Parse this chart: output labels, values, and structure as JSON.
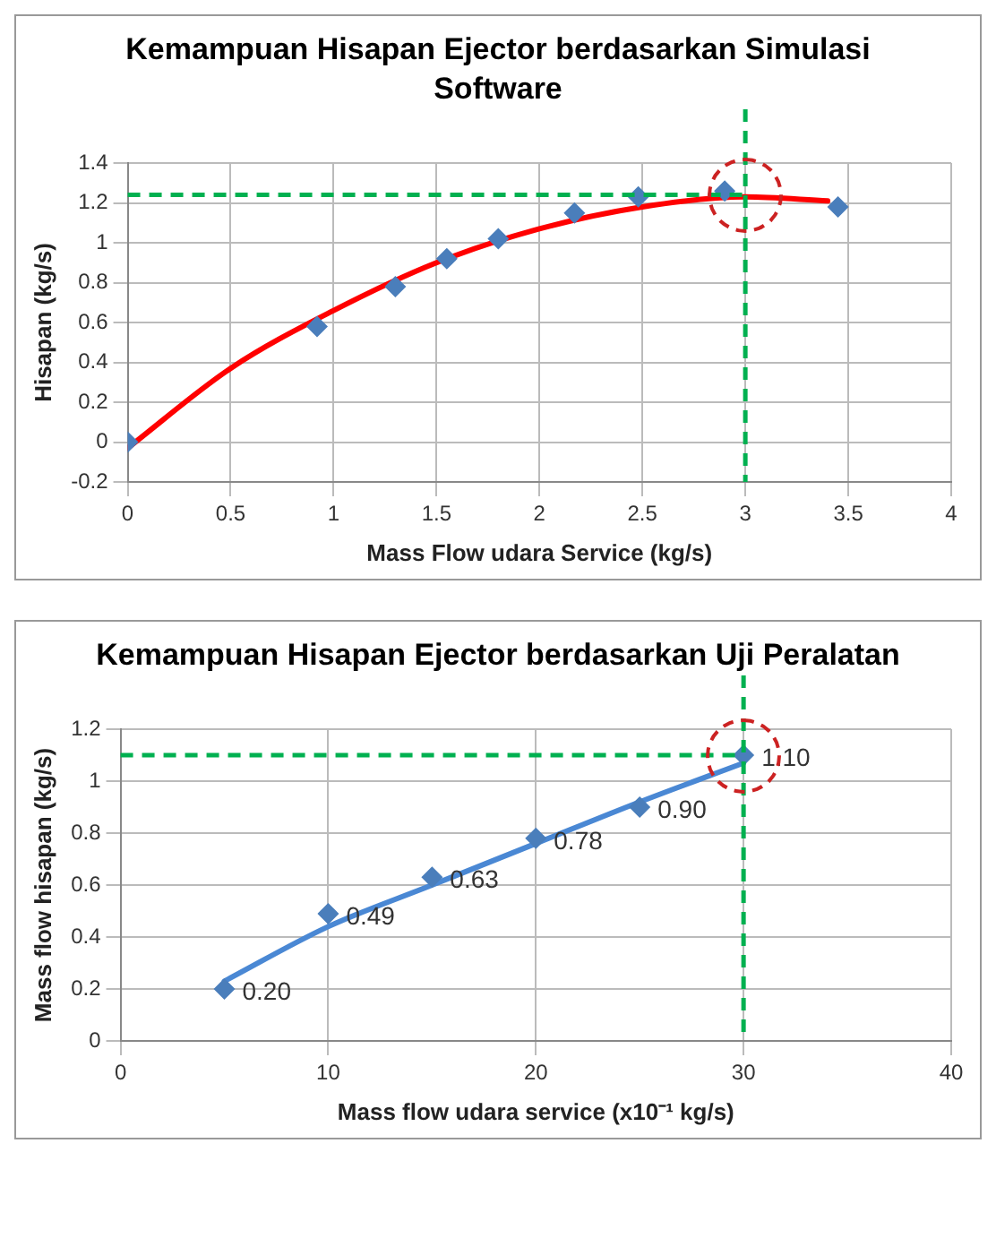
{
  "chart_data": [
    {
      "type": "scatter",
      "title": "Kemampuan Hisapan Ejector berdasarkan Simulasi Software",
      "xlabel": "Mass Flow udara Service (kg/s)",
      "ylabel": "Hisapan (kg/s)",
      "series": [
        {
          "marker": "diamond",
          "color": "#4a7ebb",
          "x": [
            0,
            0.92,
            1.3,
            1.55,
            1.8,
            2.17,
            2.48,
            2.9,
            3.45
          ],
          "values": [
            0,
            0.58,
            0.78,
            0.92,
            1.02,
            1.15,
            1.23,
            1.26,
            1.18
          ]
        },
        {
          "type": "line",
          "marker": "none",
          "color": "#ff0000",
          "x": [
            0,
            0.5,
            1,
            1.5,
            2,
            2.5,
            3,
            3.4
          ],
          "values": [
            -0.03,
            0.37,
            0.66,
            0.9,
            1.07,
            1.18,
            1.23,
            1.21
          ]
        }
      ],
      "xlim": [
        0,
        4
      ],
      "xticks": [
        0,
        0.5,
        1,
        1.5,
        2,
        2.5,
        3,
        3.5,
        4
      ],
      "ylim": [
        -0.2,
        1.4
      ],
      "yticks": [
        -0.2,
        0,
        0.2,
        0.4,
        0.6,
        0.8,
        1,
        1.2,
        1.4
      ],
      "grid": true,
      "legend": false,
      "ref_lines": [
        {
          "axis": "x",
          "value": 3,
          "color": "#00b050",
          "line_style": "dashed"
        },
        {
          "axis": "y",
          "value": 1.24,
          "color": "#00b050",
          "line_style": "dashed"
        }
      ]
    },
    {
      "type": "scatter",
      "title": "Kemampuan Hisapan Ejector berdasarkan Uji Peralatan",
      "xlabel": "Mass flow udara service (x10⁻¹ kg/s)",
      "ylabel": "Mass flow hisapan (kg/s)",
      "series": [
        {
          "marker": "diamond",
          "color": "#4a7ebb",
          "x": [
            5,
            10,
            15,
            20,
            25,
            30
          ],
          "values": [
            0.2,
            0.49,
            0.63,
            0.78,
            0.9,
            1.1
          ],
          "value_labels": [
            "0.20",
            "0.49",
            "0.63",
            "0.78",
            "0.90",
            "1.10"
          ]
        },
        {
          "type": "line",
          "marker": "none",
          "color": "#4a88d4",
          "x": [
            5,
            10,
            15,
            20,
            25,
            30
          ],
          "values": [
            0.23,
            0.44,
            0.6,
            0.76,
            0.92,
            1.07
          ]
        }
      ],
      "xlim": [
        0,
        40
      ],
      "xticks": [
        0,
        10,
        20,
        30,
        40
      ],
      "ylim": [
        0,
        1.2
      ],
      "yticks": [
        0,
        0.2,
        0.4,
        0.6,
        0.8,
        1,
        1.2
      ],
      "grid": true,
      "legend": false,
      "ref_lines": [
        {
          "axis": "x",
          "value": 30,
          "color": "#00b050",
          "line_style": "dashed"
        },
        {
          "axis": "y",
          "value": 1.1,
          "color": "#00b050",
          "line_style": "dashed"
        }
      ]
    }
  ]
}
